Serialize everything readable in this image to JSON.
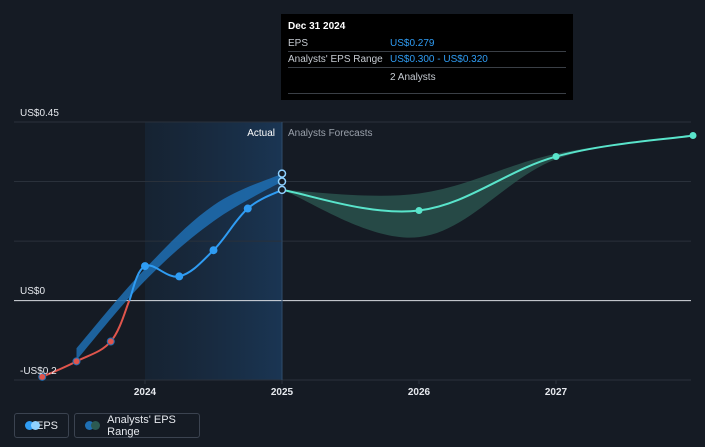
{
  "chart_data": {
    "type": "line",
    "y_label_top": "US$0.45",
    "y_label_zero": "US$0",
    "y_label_bottom": "-US$0.2",
    "ylim": [
      -0.2,
      0.45
    ],
    "x_ticks": [
      "2024",
      "2025",
      "2026",
      "2027"
    ],
    "section_actual": "Actual",
    "section_forecast": "Analysts Forecasts",
    "series": [
      {
        "name": "EPS",
        "x": [
          2023.25,
          2023.5,
          2023.75,
          2024.0,
          2024.25,
          2024.5,
          2024.75,
          2025.0
        ],
        "values": [
          -0.192,
          -0.153,
          -0.103,
          0.087,
          0.061,
          0.127,
          0.232,
          0.279
        ]
      },
      {
        "name": "EPS (forecast)",
        "x": [
          2025.0,
          2026.0,
          2027.0,
          2028.0
        ],
        "values": [
          0.279,
          0.227,
          0.363,
          0.416
        ]
      },
      {
        "name": "Analysts' EPS Range",
        "x": [
          2025.0,
          2026.0,
          2027.0,
          2028.0
        ],
        "low": [
          0.279,
          0.16,
          0.356,
          0.416
        ],
        "high": [
          0.279,
          0.27,
          0.37,
          0.416
        ]
      },
      {
        "name": "Past Analysts' EPS Range",
        "x": [
          2023.5,
          2024.0,
          2024.5,
          2025.0
        ],
        "low": [
          -0.15,
          0.05,
          0.2,
          0.3
        ],
        "high": [
          -0.12,
          0.08,
          0.24,
          0.32
        ]
      }
    ],
    "tooltip_markers": [
      0.279,
      0.3,
      0.32
    ],
    "colors": {
      "eps_positive": "#2f9cf3",
      "eps_negative": "#e0554c",
      "forecast": "#59e4cb",
      "past_band": "#1f6fb3",
      "forecast_band": "#2c5a52"
    }
  },
  "tooltip": {
    "date": "Dec 31 2024",
    "rows": [
      {
        "label": "EPS",
        "value": "US$0.279"
      },
      {
        "label": "Analysts' EPS Range",
        "value": "US$0.300 - US$0.320"
      },
      {
        "label": "",
        "value": "2 Analysts"
      }
    ]
  },
  "legend": {
    "eps_label": "EPS",
    "range_label": "Analysts' EPS Range"
  }
}
